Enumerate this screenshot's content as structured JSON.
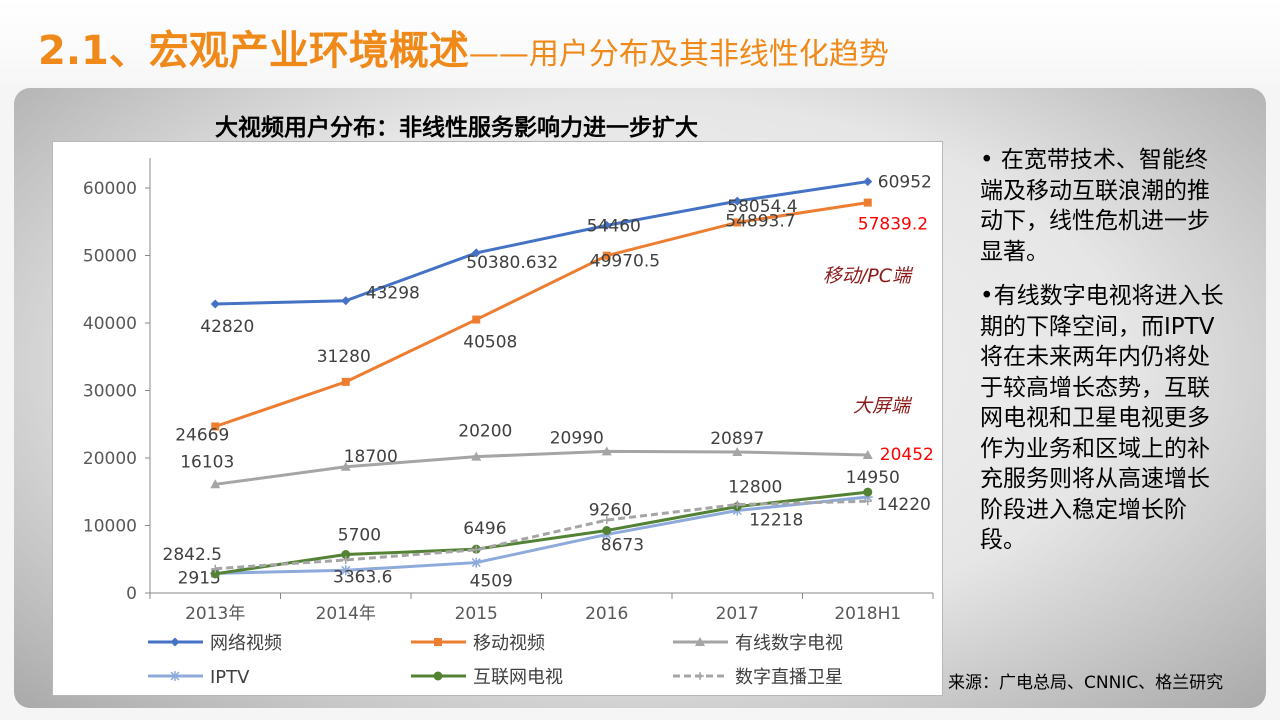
{
  "header": {
    "title_main": "2.1、宏观产业环境概述",
    "title_sub": "——用户分布及其非线性化趋势"
  },
  "chart_data": {
    "type": "line",
    "title": "大视频用户分布：非线性服务影响力进一步扩大",
    "categories": [
      "2013年",
      "2014年",
      "2015",
      "2016",
      "2017",
      "2018H1"
    ],
    "ylim": [
      0,
      65000
    ],
    "yticks": [
      "0",
      "10000",
      "20000",
      "30000",
      "40000",
      "50000",
      "60000"
    ],
    "grid": false,
    "legend_position": "bottom",
    "series": [
      {
        "name": "网络视频",
        "values": [
          42820,
          43298,
          50380.632,
          54460,
          58054.4,
          60952
        ],
        "labels": [
          "42820",
          "43298",
          "50380.632",
          "54460",
          "58054.4",
          "60952"
        ],
        "color": "#4472c4",
        "marker": "diamond",
        "dash": false
      },
      {
        "name": "移动视频",
        "values": [
          24669,
          31280,
          40508,
          49970.5,
          54893.7,
          57839.2
        ],
        "labels": [
          "24669",
          "31280",
          "40508",
          "49970.5",
          "54893.7",
          "57839.2"
        ],
        "color": "#ed7d31",
        "marker": "square",
        "dash": false
      },
      {
        "name": "有线数字电视",
        "values": [
          16103,
          18700,
          20200,
          20990,
          20897,
          20452
        ],
        "labels": [
          "16103",
          "18700",
          "20200",
          "20990",
          "20897",
          "20452"
        ],
        "color": "#a5a5a5",
        "marker": "triangle",
        "dash": false
      },
      {
        "name": "IPTV",
        "values": [
          2915,
          3363.6,
          4509,
          8673,
          12218,
          14220
        ],
        "labels": [
          "2915",
          "3363.6",
          "4509",
          "8673",
          "12218",
          "14220"
        ],
        "color": "#8eaadb",
        "marker": "star",
        "dash": false
      },
      {
        "name": "互联网电视",
        "values": [
          2842.5,
          5700,
          6496,
          9260,
          12800,
          14950
        ],
        "labels": [
          "2842.5",
          "5700",
          "6496",
          "9260",
          "12800",
          "14950"
        ],
        "color": "#548235",
        "marker": "circle",
        "dash": false
      },
      {
        "name": "数字直播卫星",
        "values": [
          3600,
          4900,
          6400,
          10800,
          13100,
          13600
        ],
        "labels": [],
        "color": "#a5a5a5",
        "marker": "plus",
        "dash": true
      }
    ],
    "annotations": [
      {
        "text": "移动/PC端",
        "color": "#8b1a1a"
      },
      {
        "text": "大屏端",
        "color": "#8b1a1a"
      }
    ],
    "highlight_color": "#ff0000"
  },
  "notes": [
    "• 在宽带技术、智能终端及移动互联浪潮的推动下，线性危机进一步显著。",
    "•有线数字电视将进入长期的下降空间，而IPTV将在未来两年内仍将处于较高增长态势，互联网电视和卫星电视更多作为业务和区域上的补充服务则将从高速增长阶段进入稳定增长阶段。"
  ],
  "source": "来源：广电总局、CNNIC、格兰研究"
}
